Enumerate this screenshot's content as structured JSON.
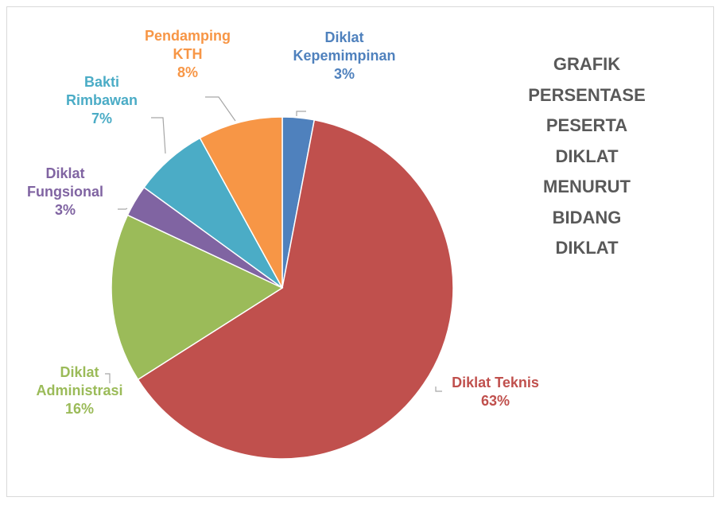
{
  "chart_data": {
    "type": "pie",
    "title": "GRAFIK PERSENTASE PESERTA DIKLAT MENURUT BIDANG DIKLAT",
    "categories": [
      "Diklat Kepemimpinan",
      "Diklat Teknis",
      "Diklat Administrasi",
      "Diklat Fungsional",
      "Bakti Rimbawan",
      "Pendamping KTH"
    ],
    "values": [
      3,
      63,
      16,
      3,
      7,
      8
    ],
    "value_labels": [
      "3%",
      "63%",
      "16%",
      "3%",
      "7%",
      "8%"
    ],
    "colors": [
      "#4f81bd",
      "#c0504d",
      "#9bbb59",
      "#8064a2",
      "#4bacc6",
      "#f79646"
    ]
  }
}
